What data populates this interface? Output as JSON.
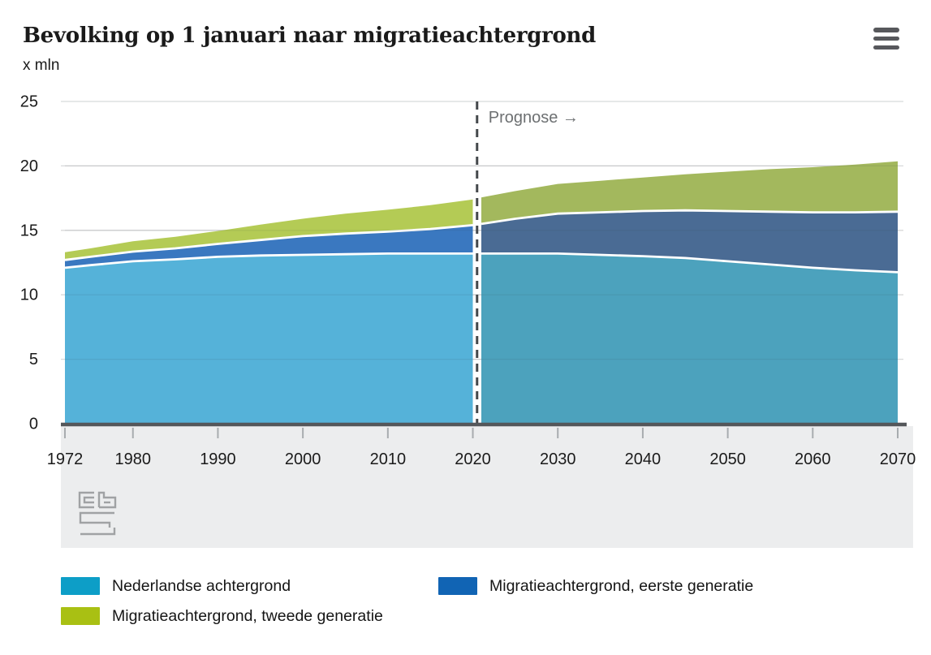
{
  "header": {
    "title": "Bevolking op 1 januari naar migratieachtergrond",
    "unit_label": "x mln"
  },
  "chart_data": {
    "type": "area",
    "stacked": true,
    "title": "Bevolking op 1 januari naar migratieachtergrond",
    "ylabel": "x mln",
    "xlabel": "",
    "ylim": [
      0,
      25
    ],
    "yticks": [
      0,
      5,
      10,
      15,
      20,
      25
    ],
    "xticks": [
      1972,
      1980,
      1990,
      2000,
      2010,
      2020,
      2030,
      2040,
      2050,
      2060,
      2070
    ],
    "x_range": [
      1972,
      2070
    ],
    "grid": true,
    "legend_position": "bottom",
    "prognose": {
      "start_year": 2021,
      "label": "Prognose →"
    },
    "years": [
      1972,
      1975,
      1980,
      1985,
      1990,
      1995,
      2000,
      2005,
      2010,
      2015,
      2020,
      2021,
      2025,
      2030,
      2035,
      2040,
      2045,
      2050,
      2055,
      2060,
      2065,
      2070
    ],
    "series": [
      {
        "name": "Nederlandse achtergrond",
        "color_hist": "#55B2D9",
        "color_prognose": "#4CA2BD",
        "values": [
          12.1,
          12.3,
          12.6,
          12.75,
          12.95,
          13.05,
          13.1,
          13.15,
          13.2,
          13.2,
          13.2,
          13.2,
          13.2,
          13.2,
          13.1,
          13.0,
          12.85,
          12.6,
          12.35,
          12.1,
          11.9,
          11.75
        ]
      },
      {
        "name": "Migratieachtergrond, eerste generatie",
        "color_hist": "#3A78C0",
        "color_prognose": "#4A6B94",
        "values": [
          0.6,
          0.65,
          0.75,
          0.85,
          1.0,
          1.2,
          1.45,
          1.6,
          1.7,
          1.9,
          2.2,
          2.3,
          2.7,
          3.1,
          3.3,
          3.5,
          3.7,
          3.9,
          4.1,
          4.3,
          4.5,
          4.7
        ]
      },
      {
        "name": "Migratieachtergrond, tweede generatie",
        "color_hist": "#B4CB55",
        "color_prognose": "#A3B85D",
        "values": [
          0.6,
          0.65,
          0.8,
          0.9,
          1.0,
          1.2,
          1.35,
          1.55,
          1.7,
          1.85,
          2.0,
          2.05,
          2.15,
          2.3,
          2.45,
          2.6,
          2.8,
          3.05,
          3.3,
          3.5,
          3.7,
          3.9
        ]
      }
    ],
    "colors": {
      "gridline": "#d8d9da",
      "axis_line": "#54575a",
      "tick": "#a8acaf",
      "axis_text": "#1b1b1b",
      "prognose_line": "#44484b",
      "prognose_text": "#6d7072",
      "plot_strip": "#ecedee",
      "logo": "#a0a2a4"
    }
  },
  "legend": {
    "items": [
      {
        "label": "Nederlandse achtergrond",
        "color": "#0d9ec7"
      },
      {
        "label": "Migratieachtergrond, eerste generatie",
        "color": "#1164b4"
      },
      {
        "label": "Migratieachtergrond, tweede generatie",
        "color": "#a9c013"
      }
    ]
  }
}
